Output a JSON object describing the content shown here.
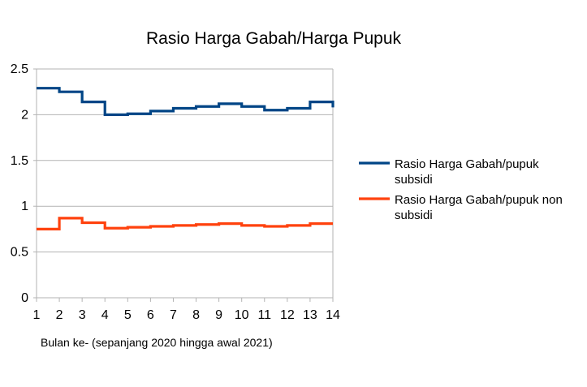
{
  "chart_data": {
    "type": "line",
    "step": true,
    "title": "Rasio Harga Gabah/Harga Pupuk",
    "xlabel": "Bulan ke- (sepanjang 2020 hingga awal 2021)",
    "ylabel": "",
    "x": [
      1,
      2,
      3,
      4,
      5,
      6,
      7,
      8,
      9,
      10,
      11,
      12,
      13,
      14
    ],
    "xlim": [
      1,
      14
    ],
    "ylim": [
      0,
      2.5
    ],
    "yticks": [
      0,
      0.5,
      1,
      1.5,
      2,
      2.5
    ],
    "ytick_labels": [
      "0",
      "0.5",
      "1",
      "1.5",
      "2",
      "2.5"
    ],
    "xtick_labels": [
      "1",
      "2",
      "3",
      "4",
      "5",
      "6",
      "7",
      "8",
      "9",
      "10",
      "11",
      "12",
      "13",
      "14"
    ],
    "grid": true,
    "legend_position": "right",
    "series": [
      {
        "name": "Rasio Harga Gabah/pupuk subsidi",
        "name_lines": [
          "Rasio Harga Gabah/pupuk",
          "subsidi"
        ],
        "color": "#004586",
        "values": [
          2.29,
          2.25,
          2.14,
          2.0,
          2.01,
          2.04,
          2.07,
          2.09,
          2.12,
          2.09,
          2.05,
          2.07,
          2.14,
          2.08
        ]
      },
      {
        "name": "Rasio Harga Gabah/pupuk non subsidi",
        "name_lines": [
          "Rasio Harga Gabah/pupuk non",
          "subsidi"
        ],
        "color": "#ff420e",
        "values": [
          0.75,
          0.87,
          0.82,
          0.76,
          0.77,
          0.78,
          0.79,
          0.8,
          0.81,
          0.79,
          0.78,
          0.79,
          0.81,
          0.81
        ]
      }
    ]
  }
}
